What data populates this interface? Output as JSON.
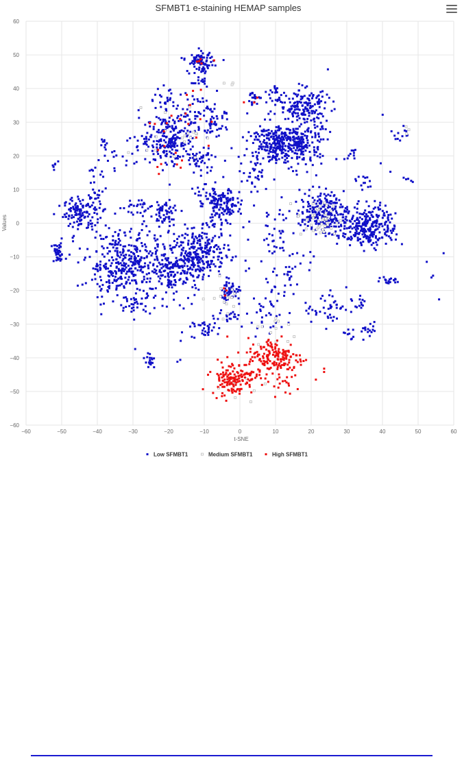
{
  "chart_data": {
    "type": "scatter",
    "title": "SFMBT1 e-staining HEMAP samples",
    "xlabel": "t-SNE",
    "ylabel": "Values",
    "xlim": [
      -60,
      60
    ],
    "ylim": [
      -60,
      60
    ],
    "xticks": [
      "−60",
      "−50",
      "−40",
      "−30",
      "−20",
      "−10",
      "0",
      "10",
      "20",
      "30",
      "40",
      "50",
      "60"
    ],
    "yticks": [
      "60",
      "50",
      "40",
      "30",
      "20",
      "10",
      "0",
      "−10",
      "−20",
      "−30",
      "−40",
      "−50",
      "−60"
    ],
    "grid": true,
    "legend_position": "bottom-center",
    "series": [
      {
        "name": "Low SFMBT1",
        "color": "#1111c8",
        "clusters": [
          {
            "cx": -51,
            "cy": -9,
            "sx": 1.0,
            "sy": 1.5,
            "n": 40
          },
          {
            "cx": -52,
            "cy": 17,
            "sx": 0.5,
            "sy": 0.7,
            "n": 6
          },
          {
            "cx": -45,
            "cy": 3,
            "sx": 2.2,
            "sy": 2.3,
            "n": 110
          },
          {
            "cx": -40,
            "cy": 10,
            "sx": 1.5,
            "sy": 5,
            "n": 40
          },
          {
            "cx": -38,
            "cy": 24,
            "sx": 0.8,
            "sy": 1.5,
            "n": 10
          },
          {
            "cx": -33,
            "cy": 19,
            "sx": 2,
            "sy": 3,
            "n": 14
          },
          {
            "cx": -30,
            "cy": 5,
            "sx": 1.8,
            "sy": 1.5,
            "n": 25
          },
          {
            "cx": -33,
            "cy": -12,
            "sx": 5,
            "sy": 5,
            "n": 330
          },
          {
            "cx": -20,
            "cy": -15,
            "sx": 4,
            "sy": 4,
            "n": 170
          },
          {
            "cx": -29,
            "cy": -24,
            "sx": 2,
            "sy": 1.4,
            "n": 30
          },
          {
            "cx": -25,
            "cy": -41,
            "sx": 0.8,
            "sy": 1.2,
            "n": 18
          },
          {
            "cx": -21,
            "cy": 3,
            "sx": 2.2,
            "sy": 2.2,
            "n": 60
          },
          {
            "cx": -20,
            "cy": 25,
            "sx": 4,
            "sy": 4,
            "n": 220
          },
          {
            "cx": -21,
            "cy": 37,
            "sx": 2,
            "sy": 1.5,
            "n": 20
          },
          {
            "cx": -12,
            "cy": 33,
            "sx": 3,
            "sy": 3,
            "n": 60
          },
          {
            "cx": -11,
            "cy": 19,
            "sx": 2,
            "sy": 2,
            "n": 40
          },
          {
            "cx": -7,
            "cy": 29,
            "sx": 2,
            "sy": 2,
            "n": 35
          },
          {
            "cx": -11,
            "cy": 48,
            "sx": 1.8,
            "sy": 1.4,
            "n": 80
          },
          {
            "cx": -11,
            "cy": 42,
            "sx": 1.5,
            "sy": 1.5,
            "n": 20
          },
          {
            "cx": -5,
            "cy": 5,
            "sx": 2.5,
            "sy": 3,
            "n": 140
          },
          {
            "cx": -10,
            "cy": 8,
            "sx": 1.5,
            "sy": 1.5,
            "n": 20
          },
          {
            "cx": -11,
            "cy": -9,
            "sx": 4,
            "sy": 3.5,
            "n": 250
          },
          {
            "cx": -3,
            "cy": -20,
            "sx": 1.5,
            "sy": 1.5,
            "n": 50
          },
          {
            "cx": -2,
            "cy": -28,
            "sx": 1.5,
            "sy": 1.0,
            "n": 15
          },
          {
            "cx": -10,
            "cy": -31,
            "sx": 2,
            "sy": 1.5,
            "n": 35
          },
          {
            "cx": 3,
            "cy": 15,
            "sx": 3,
            "sy": 2,
            "n": 30
          },
          {
            "cx": 4,
            "cy": 37,
            "sx": 1,
            "sy": 1,
            "n": 20
          },
          {
            "cx": 9,
            "cy": 24,
            "sx": 3,
            "sy": 3,
            "n": 200
          },
          {
            "cx": 17,
            "cy": 24,
            "sx": 3,
            "sy": 3.5,
            "n": 220
          },
          {
            "cx": 18,
            "cy": 35,
            "sx": 3.5,
            "sy": 2.5,
            "n": 140
          },
          {
            "cx": 10,
            "cy": 38,
            "sx": 1.5,
            "sy": 2,
            "n": 25
          },
          {
            "cx": 10,
            "cy": -8,
            "sx": 3,
            "sy": 8,
            "n": 45
          },
          {
            "cx": 14,
            "cy": -15,
            "sx": 2,
            "sy": 3,
            "n": 20
          },
          {
            "cx": 7,
            "cy": -28,
            "sx": 3,
            "sy": 3,
            "n": 30
          },
          {
            "cx": 23,
            "cy": 3,
            "sx": 3,
            "sy": 3,
            "n": 220
          },
          {
            "cx": 26,
            "cy": -25,
            "sx": 2,
            "sy": 2.5,
            "n": 30
          },
          {
            "cx": 20,
            "cy": -26,
            "sx": 1,
            "sy": 1.5,
            "n": 10
          },
          {
            "cx": 31,
            "cy": 21,
            "sx": 0.8,
            "sy": 1.5,
            "n": 10
          },
          {
            "cx": 36,
            "cy": -1,
            "sx": 4,
            "sy": 3,
            "n": 280
          },
          {
            "cx": 35,
            "cy": 12,
            "sx": 1.5,
            "sy": 1,
            "n": 12
          },
          {
            "cx": 31,
            "cy": -33,
            "sx": 1.2,
            "sy": 1.2,
            "n": 10
          },
          {
            "cx": 36,
            "cy": -32,
            "sx": 1.2,
            "sy": 1.2,
            "n": 15
          },
          {
            "cx": 33,
            "cy": -24,
            "sx": 2,
            "sy": 1.2,
            "n": 15
          },
          {
            "cx": 42,
            "cy": -17,
            "sx": 1.5,
            "sy": 0.8,
            "n": 18
          },
          {
            "cx": 45,
            "cy": 26,
            "sx": 1.5,
            "sy": 1.2,
            "n": 12
          },
          {
            "cx": 47,
            "cy": 13,
            "sx": 0.7,
            "sy": 0.7,
            "n": 5
          },
          {
            "cx": 54,
            "cy": -16,
            "sx": 0.3,
            "sy": 0.3,
            "n": 2
          },
          {
            "cx": -17,
            "cy": -41,
            "sx": 0.3,
            "sy": 0.3,
            "n": 2
          },
          {
            "cx": 0,
            "cy": -4,
            "sx": 20,
            "sy": 18,
            "n": 90
          }
        ]
      },
      {
        "name": "Medium SFMBT1",
        "color": "#bbbbbb",
        "clusters": [
          {
            "cx": 22,
            "cy": 1,
            "sx": 3,
            "sy": 3,
            "n": 45
          },
          {
            "cx": -3,
            "cy": -22,
            "sx": 3,
            "sy": 3,
            "n": 15
          },
          {
            "cx": -18,
            "cy": 27,
            "sx": 4,
            "sy": 4,
            "n": 20
          },
          {
            "cx": 10,
            "cy": -33,
            "sx": 3,
            "sy": 3,
            "n": 12
          },
          {
            "cx": -3,
            "cy": 42,
            "sx": 1,
            "sy": 1,
            "n": 3
          },
          {
            "cx": 47,
            "cy": 28,
            "sx": 0.6,
            "sy": 0.6,
            "n": 3
          },
          {
            "cx": 0,
            "cy": -48,
            "sx": 4,
            "sy": 3,
            "n": 10
          }
        ]
      },
      {
        "name": "High SFMBT1",
        "color": "#ee1111",
        "clusters": [
          {
            "cx": 10,
            "cy": -40,
            "sx": 4,
            "sy": 3,
            "n": 170
          },
          {
            "cx": -2,
            "cy": -46,
            "sx": 3,
            "sy": 2.5,
            "n": 140
          },
          {
            "cx": 12,
            "cy": -48,
            "sx": 2,
            "sy": 1.2,
            "n": 15
          },
          {
            "cx": -20,
            "cy": 22,
            "sx": 3,
            "sy": 6,
            "n": 14
          },
          {
            "cx": -12,
            "cy": 32,
            "sx": 3,
            "sy": 6,
            "n": 12
          },
          {
            "cx": -11,
            "cy": 48,
            "sx": 1,
            "sy": 1,
            "n": 4
          },
          {
            "cx": 3,
            "cy": 37,
            "sx": 1,
            "sy": 1,
            "n": 3
          },
          {
            "cx": -4,
            "cy": -20,
            "sx": 1.5,
            "sy": 1,
            "n": 3
          },
          {
            "cx": 23,
            "cy": -43,
            "sx": 0.5,
            "sy": 0.8,
            "n": 2
          }
        ]
      }
    ]
  }
}
